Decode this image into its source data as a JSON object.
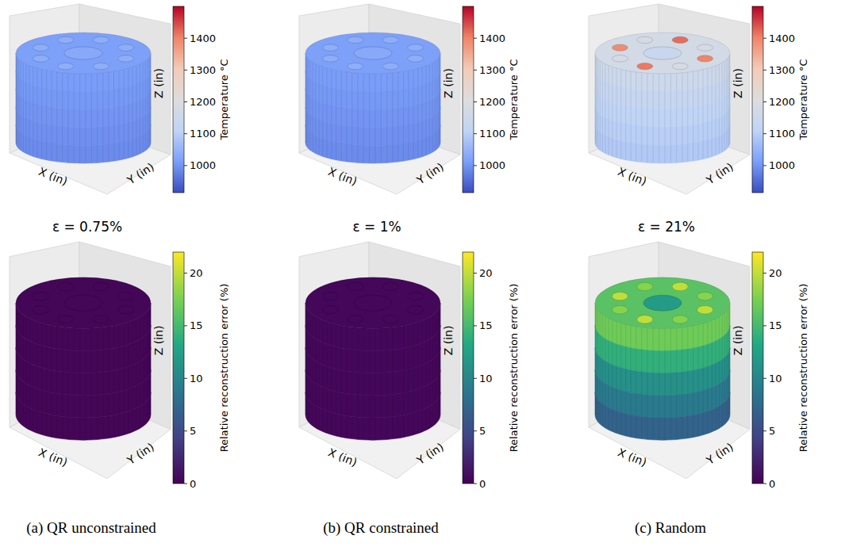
{
  "chart_data": [
    {
      "type": "surface3d",
      "xlabel": "X (in)",
      "ylabel": "Y (in)",
      "zlabel": "Z (in)",
      "tick_labels": false,
      "colorbar": {
        "label": "Temperature °C",
        "range": [
          915,
          1500
        ],
        "ticks": [
          1000,
          1100,
          1200,
          1300,
          1400
        ],
        "colors": [
          "#3b4cc0",
          "#7b9ff9",
          "#c0d4f5",
          "#dddddd",
          "#f2cbb7",
          "#ee8468",
          "#b40426"
        ]
      },
      "side_values": [
        1010,
        1005,
        1000,
        995,
        990
      ],
      "top_value": 1015,
      "center_value": 1030,
      "hole_values": [
        1040,
        1040,
        1040,
        1040,
        1040,
        1040,
        1040,
        1040
      ]
    },
    {
      "type": "surface3d",
      "xlabel": "X (in)",
      "ylabel": "Y (in)",
      "zlabel": "Z (in)",
      "tick_labels": false,
      "colorbar": {
        "label": "Temperature °C",
        "range": [
          915,
          1500
        ],
        "ticks": [
          1000,
          1100,
          1200,
          1300,
          1400
        ],
        "colors": [
          "#3b4cc0",
          "#7b9ff9",
          "#c0d4f5",
          "#dddddd",
          "#f2cbb7",
          "#ee8468",
          "#b40426"
        ]
      },
      "side_values": [
        1010,
        1005,
        1000,
        995,
        990
      ],
      "top_value": 1015,
      "center_value": 1030,
      "hole_values": [
        1040,
        1040,
        1040,
        1040,
        1040,
        1040,
        1040,
        1040
      ]
    },
    {
      "type": "surface3d",
      "xlabel": "X (in)",
      "ylabel": "Y (in)",
      "zlabel": "Z (in)",
      "tick_labels": false,
      "colorbar": {
        "label": "Temperature °C",
        "range": [
          915,
          1500
        ],
        "ticks": [
          1000,
          1100,
          1200,
          1300,
          1400
        ],
        "colors": [
          "#3b4cc0",
          "#7b9ff9",
          "#c0d4f5",
          "#dddddd",
          "#f2cbb7",
          "#ee8468",
          "#b40426"
        ]
      },
      "side_values": [
        1150,
        1130,
        1110,
        1100,
        1090
      ],
      "top_value": 1170,
      "center_value": 1140,
      "hole_values": [
        1400,
        1180,
        1410,
        1180,
        1390,
        1180,
        1420,
        1180
      ]
    },
    {
      "type": "surface3d",
      "title": "ε = 0.75%",
      "xlabel": "X (in)",
      "ylabel": "Y (in)",
      "zlabel": "Z (in)",
      "tick_labels": false,
      "colorbar": {
        "label": "Relative reconstruction error (%)",
        "range": [
          0,
          22
        ],
        "ticks": [
          0,
          5,
          10,
          15,
          20
        ],
        "colors": [
          "#440154",
          "#414487",
          "#2a788e",
          "#22a884",
          "#7ad151",
          "#fde725"
        ]
      },
      "side_values": [
        0.3,
        0.3,
        0.3,
        0.3,
        0.3
      ],
      "top_value": 0.3,
      "center_value": 0.3,
      "hole_values": [
        0.3,
        0.3,
        0.3,
        0.3,
        0.3,
        0.3,
        0.3,
        0.3
      ]
    },
    {
      "type": "surface3d",
      "title": "ε = 1%",
      "xlabel": "X (in)",
      "ylabel": "Y (in)",
      "zlabel": "Z (in)",
      "tick_labels": false,
      "colorbar": {
        "label": "Relative reconstruction error (%)",
        "range": [
          0,
          22
        ],
        "ticks": [
          0,
          5,
          10,
          15,
          20
        ],
        "colors": [
          "#440154",
          "#414487",
          "#2a788e",
          "#22a884",
          "#7ad151",
          "#fde725"
        ]
      },
      "side_values": [
        0.4,
        0.4,
        0.4,
        0.4,
        0.4
      ],
      "top_value": 0.4,
      "center_value": 0.4,
      "hole_values": [
        0.4,
        0.4,
        0.4,
        0.4,
        0.4,
        0.4,
        0.4,
        0.4
      ]
    },
    {
      "type": "surface3d",
      "title": "ε = 21%",
      "xlabel": "X (in)",
      "ylabel": "Y (in)",
      "zlabel": "Z (in)",
      "tick_labels": false,
      "colorbar": {
        "label": "Relative reconstruction error (%)",
        "range": [
          0,
          22
        ],
        "ticks": [
          0,
          5,
          10,
          15,
          20
        ],
        "colors": [
          "#440154",
          "#414487",
          "#2a788e",
          "#22a884",
          "#7ad151",
          "#fde725"
        ]
      },
      "side_values": [
        17,
        14,
        11,
        9,
        7
      ],
      "top_value": 16,
      "center_value": 12,
      "hole_values": [
        20,
        18,
        20,
        18,
        20,
        18,
        20,
        18
      ]
    }
  ],
  "captions": [
    "(a) QR unconstrained",
    "(b) QR constrained",
    "(c) Random"
  ]
}
